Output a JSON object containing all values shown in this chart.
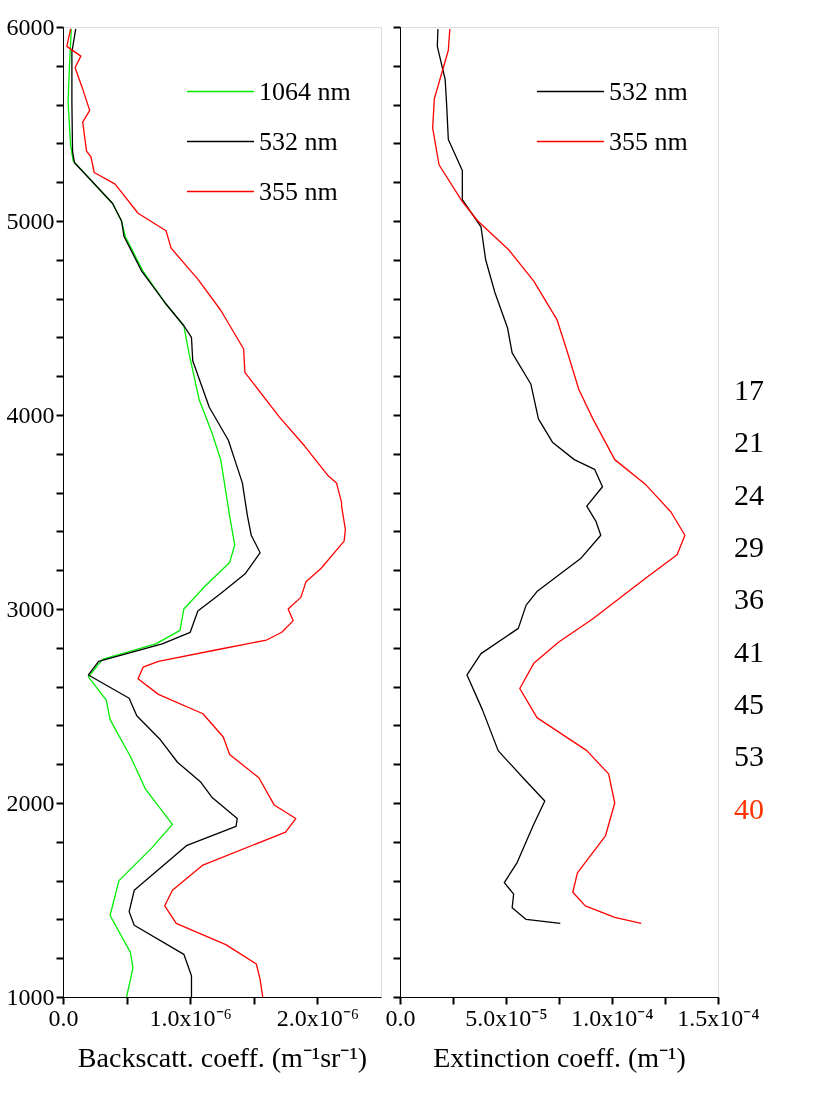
{
  "chart_data": [
    {
      "type": "line",
      "xlabel": "Backscatt. coeff. (m⁻¹sr⁻¹)",
      "xlim": [
        0,
        2.5e-06
      ],
      "ylim": [
        1000,
        6000
      ],
      "xticks": [
        {
          "value": 0,
          "label": "0.0"
        },
        {
          "value": 5e-07,
          "label": null
        },
        {
          "value": 1e-06,
          "label": "1.0x10⁻⁶"
        },
        {
          "value": 1.5e-06,
          "label": null
        },
        {
          "value": 2e-06,
          "label": "2.0x10⁻⁶"
        }
      ],
      "yticks": [
        1000,
        {
          "value": 1200,
          "label": null
        },
        {
          "value": 1400,
          "label": null
        },
        {
          "value": 1600,
          "label": null
        },
        {
          "value": 1800,
          "label": null
        },
        2000,
        {
          "value": 2200,
          "label": null
        },
        {
          "value": 2400,
          "label": null
        },
        {
          "value": 2600,
          "label": null
        },
        {
          "value": 2800,
          "label": null
        },
        3000,
        {
          "value": 3200,
          "label": null
        },
        {
          "value": 3400,
          "label": null
        },
        {
          "value": 3600,
          "label": null
        },
        {
          "value": 3800,
          "label": null
        },
        4000,
        {
          "value": 4200,
          "label": null
        },
        {
          "value": 4400,
          "label": null
        },
        {
          "value": 4600,
          "label": null
        },
        {
          "value": 4800,
          "label": null
        },
        5000,
        {
          "value": 5200,
          "label": null
        },
        {
          "value": 5400,
          "label": null
        },
        {
          "value": 5600,
          "label": null
        },
        {
          "value": 5800,
          "label": null
        },
        6000
      ],
      "legend": "top right",
      "series": [
        {
          "name": "1064 nm",
          "color": "#00ee00",
          "x": [
            6.5e-08,
            5e-08,
            4e-08,
            6e-08,
            8e-08,
            2.2e-07,
            3.9e-07,
            4.6e-07,
            4.9e-07,
            6.3e-07,
            8e-07,
            9.5e-07,
            9.9e-07,
            1.07e-06,
            1.17e-06,
            1.24e-06,
            1.31e-06,
            1.35e-06,
            1.31e-06,
            1.12e-06,
            9.5e-07,
            9.2e-07,
            7.3e-07,
            3.1e-07,
            2e-07,
            3.4e-07,
            3.7e-07,
            5.3e-07,
            6.5e-07,
            8.6e-07,
            7e-07,
            4.4e-07,
            3.7e-07,
            5.3e-07,
            5.5e-07,
            5e-07
          ],
          "values": [
            5990,
            5790,
            5610,
            5390,
            5310,
            5210,
            5090,
            5000,
            4920,
            4740,
            4580,
            4460,
            4320,
            4080,
            3910,
            3770,
            3480,
            3330,
            3240,
            3120,
            3000,
            2890,
            2820,
            2740,
            2650,
            2530,
            2430,
            2240,
            2070,
            1890,
            1770,
            1600,
            1420,
            1230,
            1150,
            1000
          ]
        },
        {
          "name": "532 nm",
          "color": "#000000",
          "x": [
            1e-07,
            7e-08,
            7e-08,
            7.5e-08,
            9e-08,
            2.2e-07,
            3.9e-07,
            4.6e-07,
            4.8e-07,
            6.2e-07,
            8e-07,
            9.5e-07,
            1.01e-06,
            1.02e-06,
            1.15e-06,
            1.3e-06,
            1.35e-06,
            1.41e-06,
            1.45e-06,
            1.48e-06,
            1.55e-06,
            1.43e-06,
            1.24e-06,
            1.06e-06,
            1e-06,
            7.8e-07,
            2.8e-07,
            2e-07,
            5.2e-07,
            5.8e-07,
            7.6e-07,
            9e-07,
            1.08e-06,
            1.17e-06,
            1.37e-06,
            1.36e-06,
            9.7e-07,
            5.6e-07,
            5.2e-07,
            5.6e-07,
            9.5e-07,
            1.01e-06,
            1.01e-06
          ],
          "values": [
            5990,
            5870,
            5610,
            5360,
            5300,
            5210,
            5090,
            5000,
            4920,
            4740,
            4580,
            4460,
            4400,
            4280,
            4040,
            3870,
            3770,
            3650,
            3480,
            3380,
            3290,
            3180,
            3080,
            2990,
            2880,
            2820,
            2730,
            2660,
            2540,
            2450,
            2330,
            2210,
            2110,
            2030,
            1920,
            1880,
            1780,
            1550,
            1440,
            1370,
            1220,
            1110,
            1000
          ]
        },
        {
          "name": "355 nm",
          "color": "#ff0000",
          "x": [
            6e-08,
            3e-08,
            1.4e-07,
            9.5e-08,
            1.55e-07,
            2.1e-07,
            1.55e-07,
            1.85e-07,
            2.2e-07,
            2.45e-07,
            4.1e-07,
            5.9e-07,
            8.1e-07,
            8.5e-07,
            1.06e-06,
            1.24e-06,
            1.42e-06,
            1.43e-06,
            1.7e-06,
            1.9e-06,
            2.08e-06,
            2.15e-06,
            2.19e-06,
            2.19e-06,
            2.22e-06,
            2.21e-06,
            2.03e-06,
            1.91e-06,
            1.87e-06,
            1.77e-06,
            1.81e-06,
            1.72e-06,
            1.6e-06,
            1.21e-06,
            7.5e-07,
            6.3e-07,
            5.9e-07,
            7.5e-07,
            1.1e-06,
            1.26e-06,
            1.31e-06,
            1.54e-06,
            1.66e-06,
            1.83e-06,
            1.75e-06,
            1.1e-06,
            8.6e-07,
            8e-07,
            8.9e-07,
            1.28e-06,
            1.52e-06,
            1.55e-06,
            1.57e-06
          ],
          "values": [
            5990,
            5900,
            5850,
            5790,
            5680,
            5570,
            5510,
            5360,
            5330,
            5250,
            5190,
            5040,
            4950,
            4860,
            4700,
            4540,
            4340,
            4220,
            3990,
            3840,
            3690,
            3650,
            3550,
            3530,
            3410,
            3350,
            3210,
            3140,
            3060,
            3000,
            2940,
            2880,
            2840,
            2790,
            2730,
            2700,
            2640,
            2560,
            2460,
            2340,
            2250,
            2130,
            1990,
            1920,
            1850,
            1680,
            1550,
            1470,
            1380,
            1270,
            1170,
            1090,
            1000
          ]
        }
      ]
    },
    {
      "type": "line",
      "xlabel": "Extinction coeff. (m⁻¹)",
      "xlim": [
        0,
        0.00015
      ],
      "ylim": [
        1000,
        6000
      ],
      "tick_labels": "x",
      "xticks": [
        {
          "value": 0,
          "label": "0.0"
        },
        {
          "value": 2.5e-05,
          "label": null
        },
        {
          "value": 5e-05,
          "label": "5.0x10⁻⁵"
        },
        {
          "value": 7.5e-05,
          "label": null
        },
        {
          "value": 0.0001,
          "label": "1.0x10⁻⁴"
        },
        {
          "value": 0.000125,
          "label": null
        },
        {
          "value": 0.00015,
          "label": "1.5x10⁻⁴"
        }
      ],
      "yticks": [
        1000,
        1200,
        1400,
        1600,
        1800,
        2000,
        2200,
        2400,
        2600,
        2800,
        3000,
        3200,
        3400,
        3600,
        3800,
        4000,
        4200,
        4400,
        4600,
        4800,
        5000,
        5200,
        5400,
        5600,
        5800,
        6000
      ],
      "legend": "top right",
      "series": [
        {
          "name": "532 nm",
          "color": "#000000",
          "x": [
            1.79e-05,
            1.76e-05,
            2.13e-05,
            2.2e-05,
            2.28e-05,
            2.94e-05,
            2.94e-05,
            3.82e-05,
            4.04e-05,
            4.48e-05,
            5.07e-05,
            5.29e-05,
            6.17e-05,
            6.53e-05,
            7.19e-05,
            8.22e-05,
            9.18e-05,
            9.55e-05,
            8.81e-05,
            9.25e-05,
            9.47e-05,
            8.52e-05,
            6.46e-05,
            5.95e-05,
            5.58e-05,
            3.82e-05,
            3.16e-05,
            3.89e-05,
            4.63e-05,
            5.8e-05,
            6.83e-05,
            6.31e-05,
            5.95e-05,
            5.51e-05,
            4.92e-05,
            5.36e-05,
            5.29e-05,
            5.95e-05,
            7.56e-05
          ],
          "values": [
            5990,
            5900,
            5730,
            5600,
            5420,
            5260,
            5110,
            4970,
            4800,
            4630,
            4450,
            4320,
            4160,
            3980,
            3860,
            3770,
            3720,
            3630,
            3530,
            3450,
            3380,
            3260,
            3090,
            3020,
            2900,
            2770,
            2660,
            2480,
            2270,
            2130,
            2010,
            1890,
            1800,
            1690,
            1590,
            1530,
            1460,
            1400,
            1380
          ]
        },
        {
          "name": "355 nm",
          "color": "#ff0000",
          "x": [
            2.35e-05,
            2.28e-05,
            1.62e-05,
            1.54e-05,
            1.84e-05,
            2.94e-05,
            3.67e-05,
            5.14e-05,
            6.31e-05,
            7.41e-05,
            7.85e-05,
            8.44e-05,
            9.1e-05,
            0.0001013,
            0.000116,
            0.0001278,
            0.0001344,
            0.0001307,
            0.000116,
            9.1e-05,
            7.49e-05,
            6.31e-05,
            5.65e-05,
            6.46e-05,
            8.81e-05,
            9.84e-05,
            0.0001013,
            9.69e-05,
            8.37e-05,
            8.15e-05,
            8.74e-05,
            0.0001013,
            0.0001138
          ],
          "values": [
            5990,
            5880,
            5630,
            5480,
            5290,
            5100,
            5000,
            4850,
            4690,
            4490,
            4340,
            4130,
            3980,
            3770,
            3640,
            3500,
            3380,
            3280,
            3160,
            2950,
            2830,
            2720,
            2590,
            2440,
            2270,
            2150,
            2000,
            1830,
            1640,
            1540,
            1470,
            1410,
            1380
          ]
        }
      ]
    },
    {
      "type": "other",
      "annotations": [
        "17",
        "21",
        "24",
        "29",
        "36",
        "41",
        "45",
        "53",
        "40"
      ],
      "colors": [
        "#000000",
        "#000000",
        "#000000",
        "#000000",
        "#000000",
        "#000000",
        "#000000",
        "#000000",
        "#ff3300"
      ]
    }
  ]
}
